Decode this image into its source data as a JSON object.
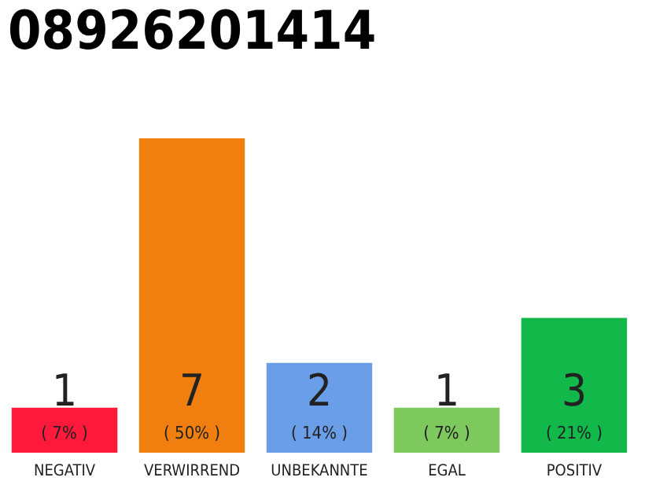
{
  "chart_data": {
    "type": "bar",
    "title": "08926201414",
    "categories": [
      "NEGATIV",
      "VERWIRREND",
      "UNBEKANNTE",
      "EGAL",
      "POSITIV"
    ],
    "values": [
      1,
      7,
      2,
      1,
      3
    ],
    "colors": [
      "#ff1a3c",
      "#f07f0f",
      "#6a9ee8",
      "#7dc95e",
      "#12b84a"
    ],
    "data_labels": true,
    "annotations": [
      "( 7% )",
      "( 50% )",
      "( 14% )",
      "( 7% )",
      "( 21% )"
    ]
  }
}
